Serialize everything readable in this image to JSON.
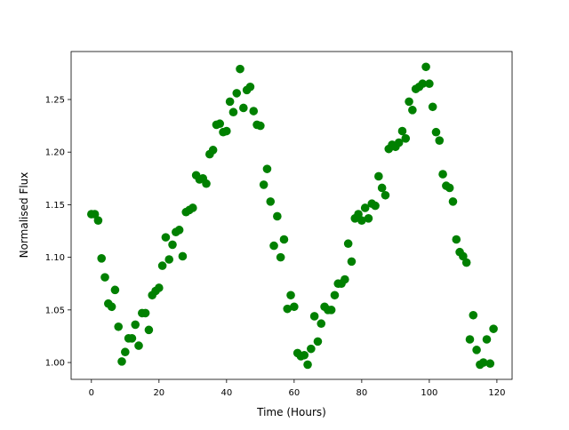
{
  "chart_data": {
    "type": "scatter",
    "title": "",
    "xlabel": "Time (Hours)",
    "ylabel": "Normalised Flux",
    "xlim": [
      -6,
      124.5
    ],
    "ylim": [
      0.984,
      1.2956
    ],
    "xticks": [
      0,
      20,
      40,
      60,
      80,
      100,
      120
    ],
    "xtick_labels": [
      "0",
      "20",
      "40",
      "60",
      "80",
      "100",
      "120"
    ],
    "yticks": [
      1.0,
      1.05,
      1.1,
      1.15,
      1.2,
      1.25
    ],
    "ytick_labels": [
      "1.00",
      "1.05",
      "1.10",
      "1.15",
      "1.20",
      "1.25"
    ],
    "grid": false,
    "marker_color": "#008000",
    "x": [
      0,
      1,
      2,
      3,
      4,
      5,
      6,
      7,
      8,
      9,
      10,
      11,
      12,
      13,
      14,
      15,
      16,
      17,
      18,
      19,
      20,
      21,
      22,
      23,
      24,
      25,
      26,
      27,
      28,
      29,
      30,
      31,
      32,
      33,
      34,
      35,
      36,
      37,
      38,
      39,
      40,
      41,
      42,
      43,
      44,
      45,
      46,
      47,
      48,
      49,
      50,
      51,
      52,
      53,
      54,
      55,
      56,
      57,
      58,
      59,
      60,
      61,
      62,
      63,
      64,
      65,
      66,
      67,
      68,
      69,
      70,
      71,
      72,
      73,
      74,
      75,
      76,
      77,
      78,
      79,
      80,
      81,
      82,
      83,
      84,
      85,
      86,
      87,
      88,
      89,
      90,
      91,
      92,
      93,
      94,
      95,
      96,
      97,
      98,
      99,
      100,
      101,
      102,
      103,
      104,
      105,
      106,
      107,
      108,
      109,
      110,
      111,
      112,
      113,
      114,
      115,
      116,
      117,
      118,
      119
    ],
    "y": [
      1.141,
      1.141,
      1.135,
      1.099,
      1.081,
      1.056,
      1.053,
      1.069,
      1.034,
      1.001,
      1.01,
      1.023,
      1.023,
      1.036,
      1.016,
      1.047,
      1.047,
      1.031,
      1.064,
      1.068,
      1.071,
      1.092,
      1.119,
      1.098,
      1.112,
      1.124,
      1.126,
      1.101,
      1.143,
      1.145,
      1.147,
      1.178,
      1.174,
      1.175,
      1.17,
      1.198,
      1.202,
      1.226,
      1.227,
      1.219,
      1.22,
      1.248,
      1.238,
      1.256,
      1.279,
      1.242,
      1.259,
      1.262,
      1.239,
      1.226,
      1.225,
      1.169,
      1.184,
      1.153,
      1.111,
      1.139,
      1.1,
      1.117,
      1.051,
      1.064,
      1.053,
      1.009,
      1.006,
      1.007,
      0.998,
      1.013,
      1.044,
      1.02,
      1.037,
      1.053,
      1.05,
      1.05,
      1.064,
      1.075,
      1.075,
      1.079,
      1.113,
      1.096,
      1.137,
      1.141,
      1.135,
      1.147,
      1.137,
      1.151,
      1.149,
      1.177,
      1.166,
      1.159,
      1.203,
      1.207,
      1.205,
      1.209,
      1.22,
      1.213,
      1.248,
      1.24,
      1.26,
      1.262,
      1.265,
      1.281,
      1.265,
      1.243,
      1.219,
      1.211,
      1.179,
      1.168,
      1.166,
      1.153,
      1.117,
      1.105,
      1.101,
      1.095,
      1.022,
      1.045,
      1.012,
      0.998,
      1.0,
      1.022,
      0.999,
      1.032
    ]
  }
}
